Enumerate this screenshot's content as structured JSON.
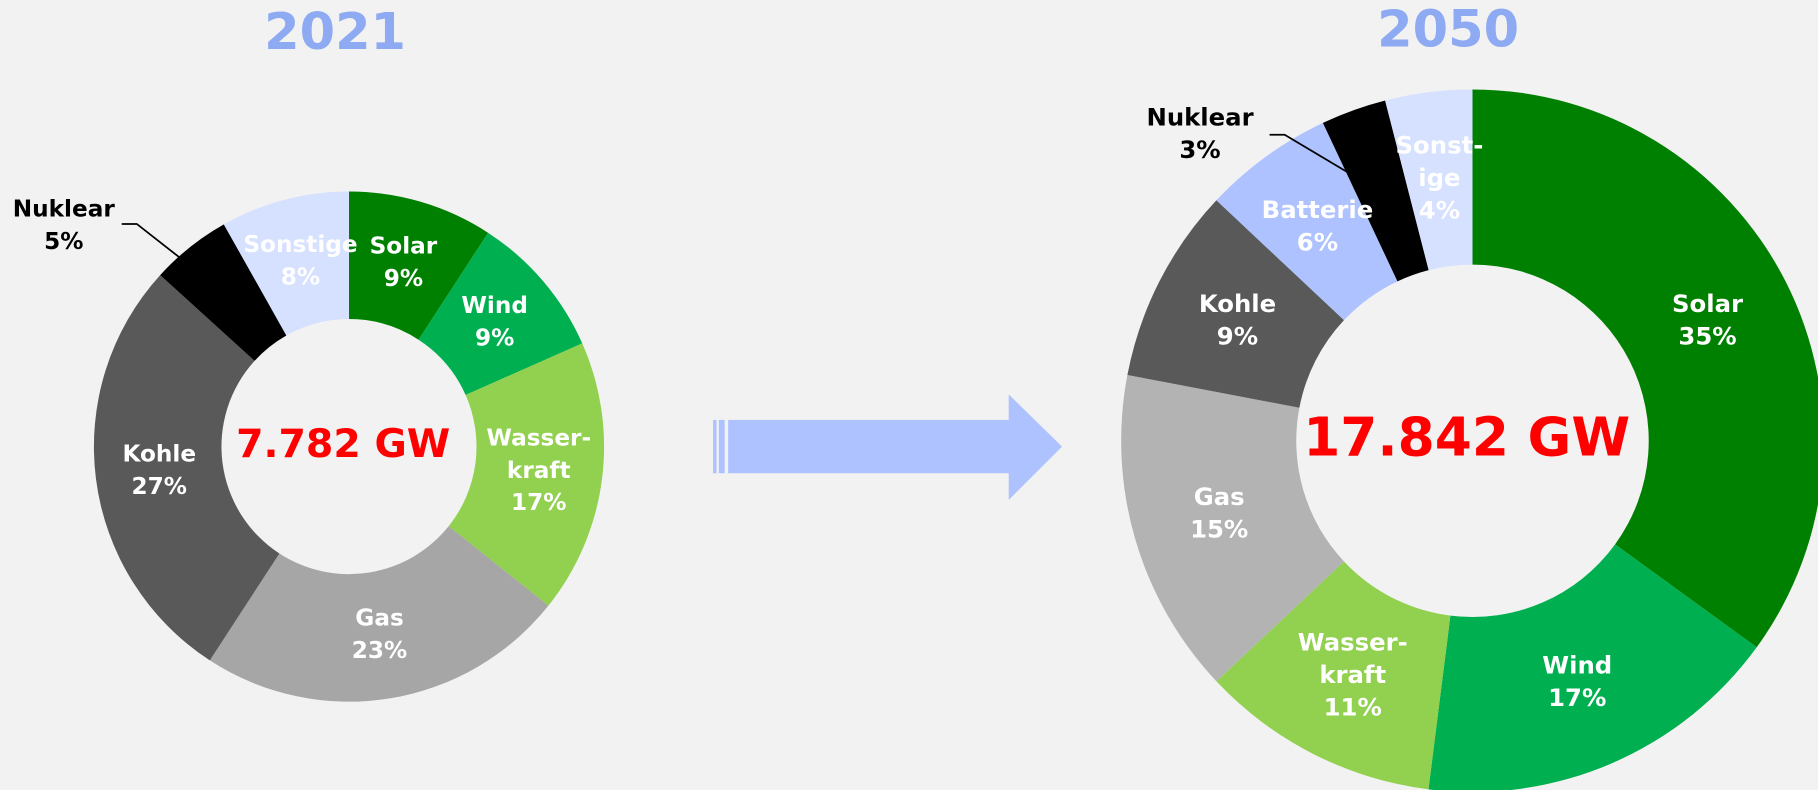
{
  "chart_data": [
    {
      "type": "donut",
      "title": "2021",
      "annotation": "7.782 GW",
      "categories": [
        "Solar",
        "Wind",
        "Wasser-\nkraft",
        "Gas",
        "Kohle",
        "Nuklear",
        "Sonstige"
      ],
      "values": [
        9,
        9,
        17,
        23,
        27,
        5,
        8
      ],
      "value_labels": [
        "9%",
        "9%",
        "17%",
        "23%",
        "27%",
        "5%",
        "8%"
      ],
      "colors": [
        "#008000",
        "#00b050",
        "#92d050",
        "#a6a6a6",
        "#595959",
        "#000000",
        "#d6e0ff"
      ]
    },
    {
      "type": "donut",
      "title": "2050",
      "annotation": "17.842 GW",
      "categories": [
        "Solar",
        "Wind",
        "Wasser-\nkraft",
        "Gas",
        "Kohle",
        "Batterie",
        "Nuklear",
        "Sonst-\nige"
      ],
      "values": [
        35,
        17,
        11,
        15,
        9,
        6,
        3,
        4
      ],
      "value_labels": [
        "35%",
        "17%",
        "11%",
        "15%",
        "9%",
        "6%",
        "3%",
        "4%"
      ],
      "colors": [
        "#008000",
        "#00b050",
        "#92d050",
        "#b3b3b3",
        "#595959",
        "#adc2ff",
        "#000000",
        "#d6e0ff"
      ]
    }
  ]
}
